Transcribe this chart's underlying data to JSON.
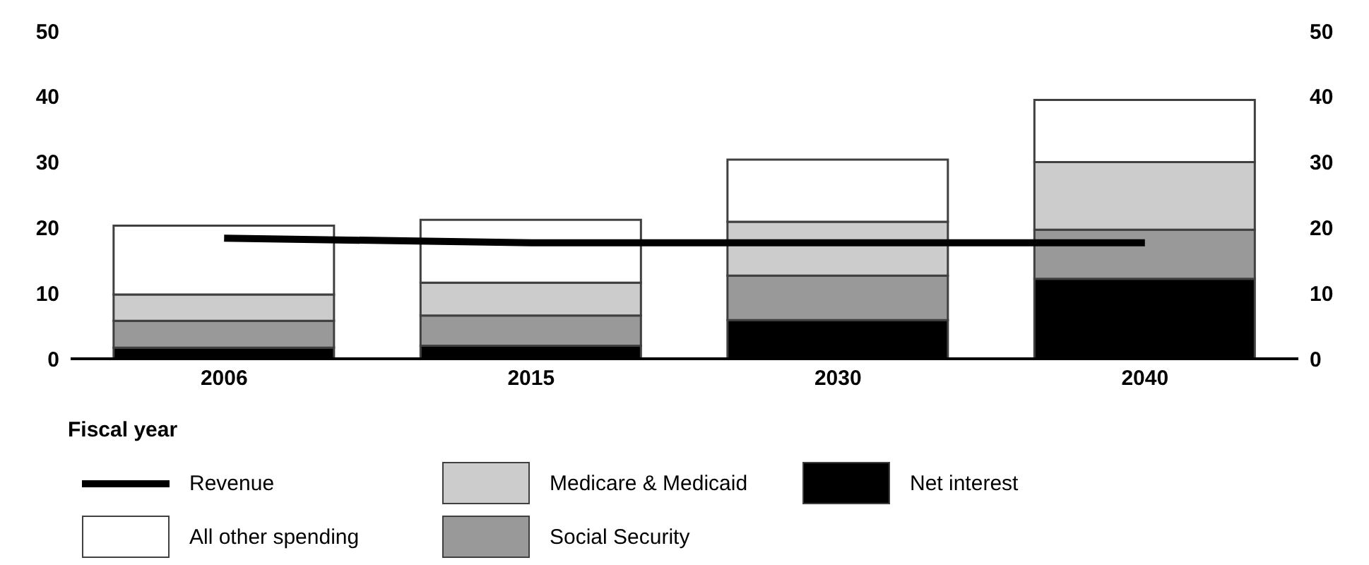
{
  "chart_data": {
    "type": "bar",
    "stacked": true,
    "xlabel": "Fiscal year",
    "categories": [
      "2006",
      "2015",
      "2030",
      "2040"
    ],
    "series": [
      {
        "name": "Net interest",
        "color": "#000000",
        "values": [
          1.7,
          2.0,
          5.9,
          12.2
        ]
      },
      {
        "name": "Social Security",
        "color": "#999999",
        "values": [
          4.1,
          4.6,
          6.8,
          7.5
        ]
      },
      {
        "name": "Medicare & Medicaid",
        "color": "#cccccc",
        "values": [
          4.0,
          5.0,
          8.2,
          10.3
        ]
      },
      {
        "name": "All other spending",
        "color": "#ffffff",
        "values": [
          10.5,
          9.6,
          9.5,
          9.5
        ]
      },
      {
        "name": "Revenue",
        "type": "line",
        "color": "#000000",
        "values": [
          18.4,
          17.7,
          17.7,
          17.7
        ]
      }
    ],
    "ylim": [
      0,
      50
    ],
    "yticks": [
      0,
      10,
      20,
      30,
      40,
      50
    ],
    "y2lim": [
      0,
      50
    ],
    "y2ticks": [
      0,
      10,
      20,
      30,
      40,
      50
    ],
    "legend": "bottom",
    "marker": "none"
  }
}
